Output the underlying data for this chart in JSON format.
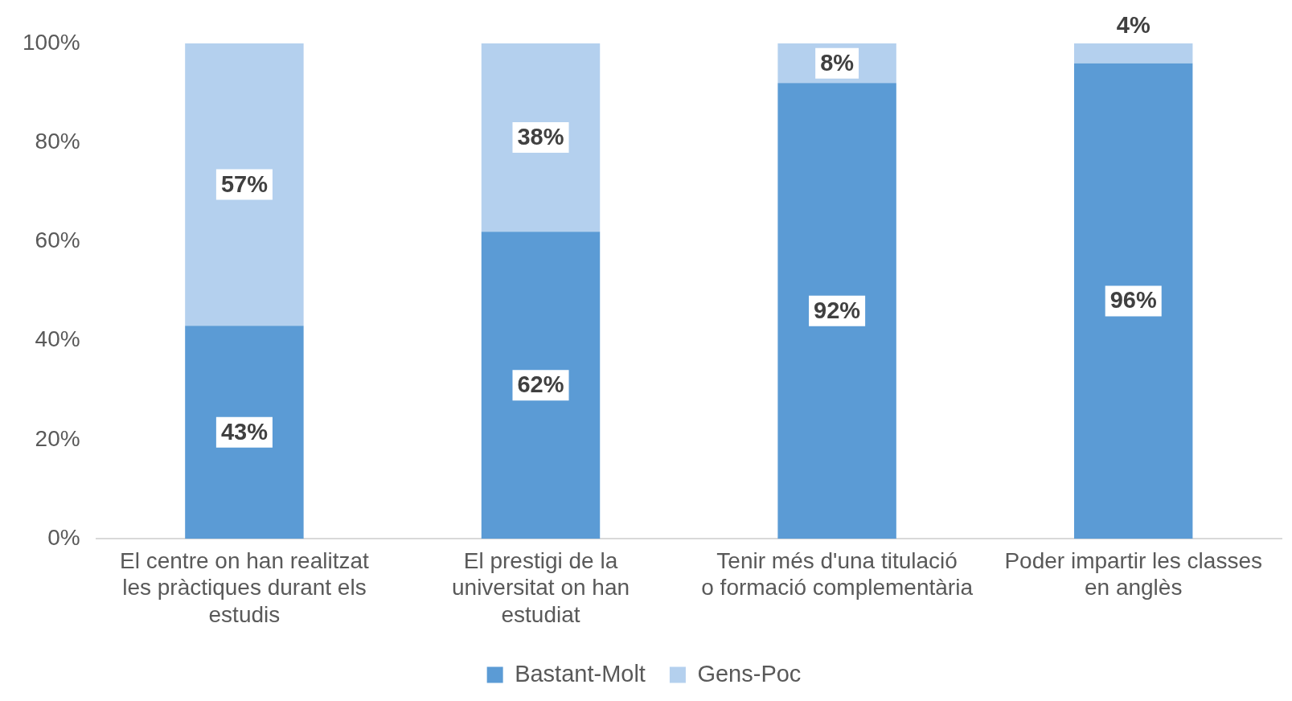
{
  "chart_data": {
    "type": "bar",
    "stacked": true,
    "categories": [
      "El centre on han realitzat les pràctiques durant els estudis",
      "El prestigi de la universitat on han estudiat",
      "Tenir més d'una titulació o formació complementària",
      "Poder impartir les classes en anglès"
    ],
    "series": [
      {
        "name": "Bastant-Molt",
        "color": "#5b9bd5",
        "values": [
          43,
          62,
          92,
          96
        ],
        "value_labels": [
          "43%",
          "62%",
          "92%",
          "96%"
        ]
      },
      {
        "name": "Gens-Poc",
        "color": "#b4d0ee",
        "values": [
          57,
          38,
          8,
          4
        ],
        "value_labels": [
          "57%",
          "38%",
          "8%",
          "4%"
        ]
      }
    ],
    "ylim": [
      0,
      100
    ],
    "yticks": [
      {
        "value": 0,
        "label": "0%"
      },
      {
        "value": 20,
        "label": "20%"
      },
      {
        "value": 40,
        "label": "40%"
      },
      {
        "value": 60,
        "label": "60%"
      },
      {
        "value": 80,
        "label": "80%"
      },
      {
        "value": 100,
        "label": "100%"
      }
    ],
    "grid": false,
    "legend": "bottom"
  }
}
